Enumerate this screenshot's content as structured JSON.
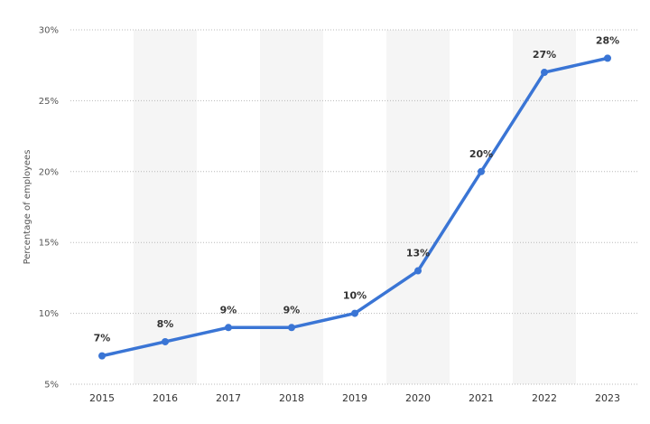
{
  "chart_data": {
    "type": "line",
    "title": "",
    "xlabel": "",
    "ylabel": "Percentage of employees",
    "categories": [
      "2015",
      "2016",
      "2017",
      "2018",
      "2019",
      "2020",
      "2021",
      "2022",
      "2023"
    ],
    "series": [
      {
        "values": [
          7,
          8,
          9,
          9,
          10,
          13,
          20,
          27,
          28
        ],
        "labels": [
          "7%",
          "8%",
          "9%",
          "9%",
          "10%",
          "13%",
          "20%",
          "27%",
          "28%"
        ],
        "color": "#3a75d5"
      }
    ],
    "ylim": [
      5,
      30
    ],
    "yticks": [
      5,
      10,
      15,
      20,
      25,
      30
    ],
    "ytick_labels": [
      "5%",
      "10%",
      "15%",
      "20%",
      "25%",
      "30%"
    ],
    "grid": true,
    "alternating_column_shading": true,
    "legend": "none"
  }
}
